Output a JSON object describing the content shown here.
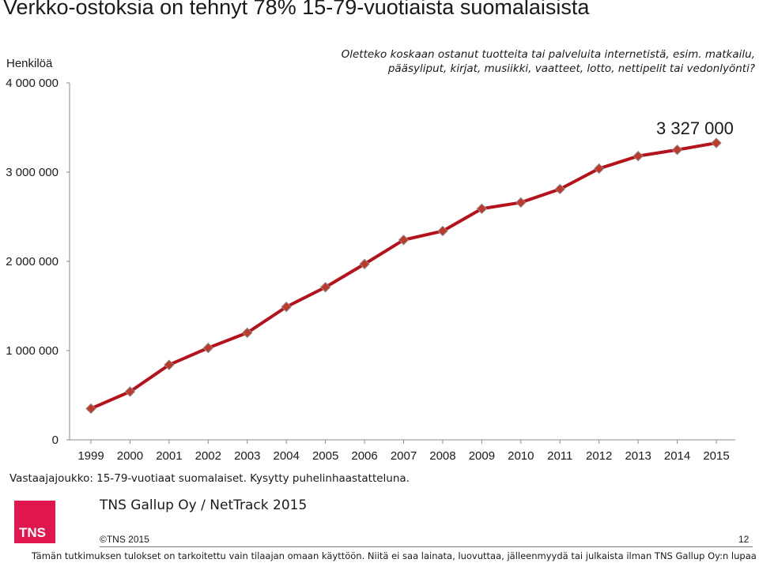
{
  "title": "Verkko-ostoksia on tehnyt 78% 15-79-vuotiaista suomalaisista",
  "question": "Oletteko koskaan ostanut tuotteita tai palveluita internetistä, esim. matkailu, pääsyliput, kirjat, musiikki, vaatteet, lotto, nettipelit tai vedonlyönti?",
  "peak_label": "3 327 000",
  "note": "Vastaajajoukko: 15-79-vuotiaat suomalaiset. Kysytty puhelinhaastatteluna.",
  "source": "TNS Gallup Oy / NetTrack 2015",
  "logo_text": "TNS",
  "copyright": "©TNS 2015",
  "page_number": "12",
  "footer": "Tämän tutkimuksen tulokset on tarkoitettu vain tilaajan omaan käyttöön. Niitä ei saa lainata, luovuttaa, jälleenmyydä tai julkaista ilman TNS Gallup Oy:n lupaa",
  "colors": {
    "line": "#b5121b",
    "marker": "#c0392b",
    "logo": "#e0174f"
  },
  "chart_data": {
    "type": "line",
    "ylabel": "Henkilöä",
    "xlabel": "",
    "ylim": [
      0,
      4000000
    ],
    "yticks": [
      0,
      1000000,
      2000000,
      3000000,
      4000000
    ],
    "ytick_labels": [
      "0",
      "1 000 000",
      "2 000 000",
      "3 000 000",
      "4 000 000"
    ],
    "categories": [
      "1999",
      "2000",
      "2001",
      "2002",
      "2003",
      "2004",
      "2005",
      "2006",
      "2007",
      "2008",
      "2009",
      "2010",
      "2011",
      "2012",
      "2013",
      "2014",
      "2015"
    ],
    "series": [
      {
        "values": [
          350000,
          540000,
          840000,
          1030000,
          1200000,
          1490000,
          1710000,
          1970000,
          2240000,
          2340000,
          2590000,
          2660000,
          2810000,
          3040000,
          3180000,
          3250000,
          3327000
        ]
      }
    ]
  }
}
